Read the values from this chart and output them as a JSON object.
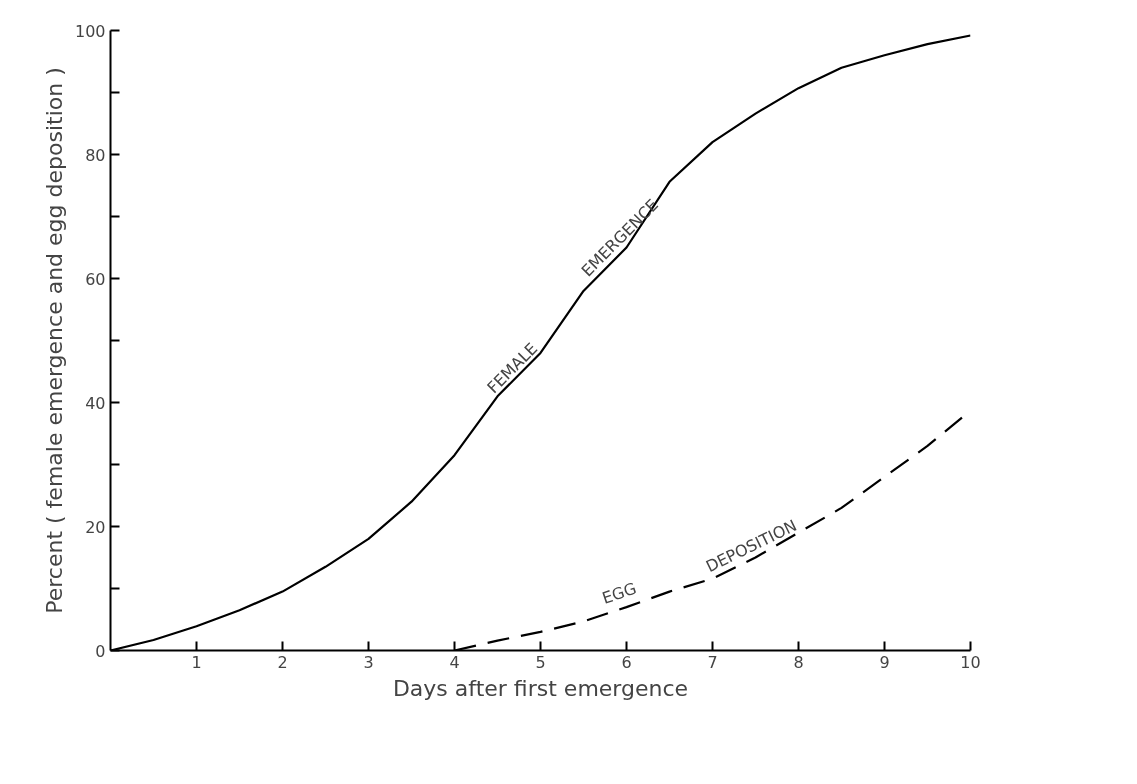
{
  "chart_data": {
    "type": "line",
    "xlabel": "Days after first emergence",
    "ylabel": "Percent ( female emergence and egg deposition )",
    "xlim": [
      0,
      10
    ],
    "ylim": [
      0,
      100
    ],
    "xticks": [
      1,
      2,
      3,
      4,
      5,
      6,
      7,
      8,
      9,
      10
    ],
    "yticks": [
      0,
      {
        "value": 10,
        "label": null
      },
      20,
      {
        "value": 30,
        "label": null
      },
      40,
      {
        "value": 50,
        "label": null
      },
      60,
      {
        "value": 70,
        "label": null
      },
      80,
      {
        "value": 90,
        "label": null
      },
      100
    ],
    "grid": false,
    "marker": "none",
    "series": [
      {
        "color": "#000000",
        "line_style": "solid",
        "x": [
          0,
          0.5,
          1,
          1.5,
          2,
          2.5,
          3,
          3.5,
          4,
          4.5,
          5,
          5.5,
          6,
          6.5,
          7,
          7.5,
          8,
          8.5,
          9,
          9.5,
          10
        ],
        "values": [
          0,
          1.7,
          3.9,
          6.5,
          9.5,
          13.5,
          18,
          24,
          31.5,
          41,
          48,
          58,
          65,
          75.6,
          82,
          86.6,
          90.7,
          94,
          96,
          97.8,
          99.2
        ]
      },
      {
        "color": "#000000",
        "line_style": "dashed",
        "x": [
          4,
          4.5,
          5,
          5.5,
          6,
          6.5,
          7,
          7.5,
          8,
          8.5,
          9,
          9.5,
          10
        ],
        "values": [
          0,
          1.6,
          3,
          4.7,
          7,
          9.5,
          11.6,
          15,
          19,
          23,
          28,
          33,
          38.7
        ]
      }
    ],
    "annotations": [
      {
        "text": "FEMALE",
        "x": 4.75,
        "y": 44
      },
      {
        "text": "EMERGENCE",
        "x": 6,
        "y": 65
      },
      {
        "text": "EGG",
        "x": 5.95,
        "y": 7.3
      },
      {
        "text": "DEPOSITION",
        "x": 7.5,
        "y": 15
      }
    ]
  }
}
